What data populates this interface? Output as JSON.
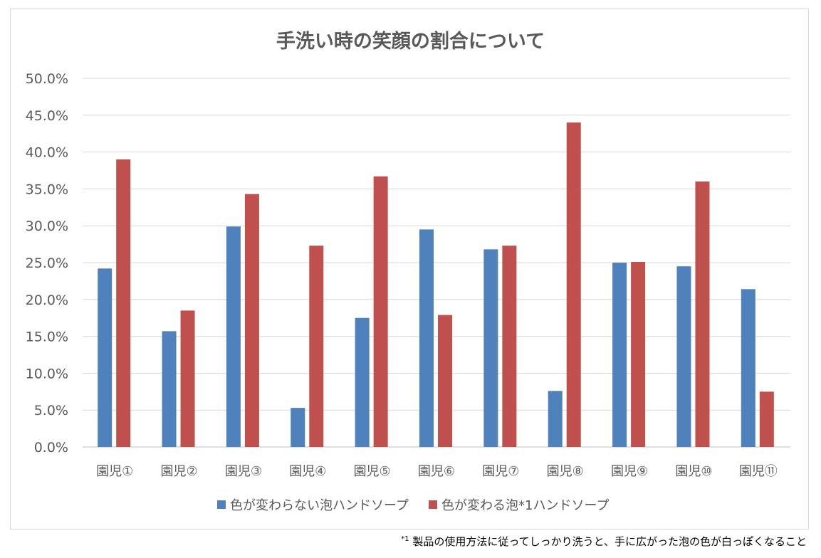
{
  "footnote": {
    "marker": "*1",
    "text": "製品の使用方法に従ってしっかり洗うと、手に広がった泡の色が白っぽくなること"
  },
  "chart_data": {
    "type": "bar",
    "title": "手洗い時の笑顔の割合について",
    "categories": [
      "園児①",
      "園児②",
      "園児③",
      "園児④",
      "園児⑤",
      "園児⑥",
      "園児⑦",
      "園児⑧",
      "園児⑨",
      "園児⑩",
      "園児⑪"
    ],
    "series": [
      {
        "name": "色が変わらない泡ハンドソープ",
        "color": "#4f81bd",
        "values": [
          24.2,
          15.7,
          29.9,
          5.3,
          17.5,
          29.5,
          26.8,
          7.6,
          25.0,
          24.5,
          21.4
        ]
      },
      {
        "name": "色が変わる泡*1ハンドソープ",
        "color": "#c0504d",
        "values": [
          39.0,
          18.5,
          34.3,
          27.3,
          36.7,
          17.9,
          27.3,
          44.0,
          25.1,
          36.0,
          7.5
        ]
      }
    ],
    "xlabel": "",
    "ylabel": "",
    "ylim": [
      0,
      50
    ],
    "yticks": [
      0,
      5,
      10,
      15,
      20,
      25,
      30,
      35,
      40,
      45,
      50
    ],
    "ytick_format": "percent-1dp",
    "grid": true,
    "legend": "bottom"
  }
}
